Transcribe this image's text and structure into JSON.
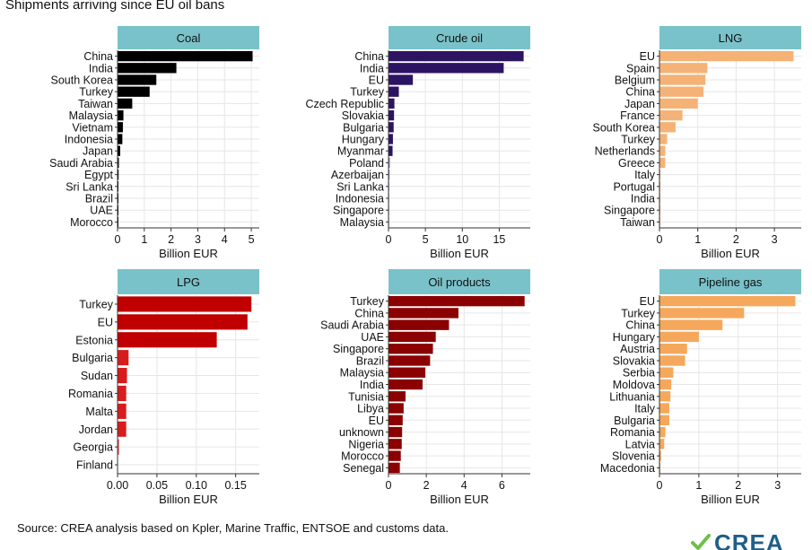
{
  "header": {
    "title": "Shipments arriving since EU oil bans"
  },
  "footer": {
    "source": "Source: CREA analysis based on Kpler, Marine Traffic, ENTSOE and customs data."
  },
  "logo": {
    "text": "CREA",
    "mark_color": "#6cc04a",
    "text_color": "#1d5f8a"
  },
  "style": {
    "strip_fill": "#7ac2c9",
    "grid_color": "#e6e6e6"
  },
  "chart_data": [
    {
      "type": "bar",
      "orientation": "horizontal",
      "title": "Coal",
      "xlabel": "Billion EUR",
      "categories": [
        "China",
        "India",
        "South Korea",
        "Turkey",
        "Taiwan",
        "Malaysia",
        "Vietnam",
        "Indonesia",
        "Japan",
        "Saudi Arabia",
        "Egypt",
        "Sri Lanka",
        "Brazil",
        "UAE",
        "Morocco"
      ],
      "values": [
        5.05,
        2.2,
        1.45,
        1.2,
        0.55,
        0.22,
        0.2,
        0.18,
        0.1,
        0.05,
        0.04,
        0.03,
        0.03,
        0.02,
        0.01
      ],
      "colors": [
        "#000000",
        "#000000",
        "#000000",
        "#000000",
        "#000000",
        "#000000",
        "#000000",
        "#000000",
        "#000000",
        "#000000",
        "#000000",
        "#000000",
        "#000000",
        "#000000",
        "#000000"
      ],
      "ticks": [
        0,
        1,
        2,
        3,
        4,
        5
      ],
      "tick_labels": [
        "0",
        "1",
        "2",
        "3",
        "4",
        "5"
      ],
      "xlim": [
        0,
        5.3
      ]
    },
    {
      "type": "bar",
      "orientation": "horizontal",
      "title": "Crude oil",
      "xlabel": "Billion EUR",
      "categories": [
        "China",
        "India",
        "EU",
        "Turkey",
        "Czech Republic",
        "Slovakia",
        "Bulgaria",
        "Hungary",
        "Myanmar",
        "Poland",
        "Azerbaijan",
        "Sri Lanka",
        "Indonesia",
        "Singapore",
        "Malaysia"
      ],
      "values": [
        18.3,
        15.6,
        3.3,
        1.4,
        0.8,
        0.75,
        0.7,
        0.6,
        0.55,
        0.2,
        0.15,
        0.05,
        0.03,
        0.02,
        0.01
      ],
      "colors": [
        "#2d1463",
        "#2d1463",
        "#2d1463",
        "#2d1463",
        "#2d1463",
        "#2d1463",
        "#2d1463",
        "#2d1463",
        "#2d1463",
        "#9a8ec8",
        "#9a8ec8",
        "#b9b2da",
        "#c9c3e3",
        "#d2cde8",
        "#d6d2ea"
      ],
      "ticks": [
        0,
        5,
        10,
        15
      ],
      "tick_labels": [
        "0",
        "5",
        "10",
        "15"
      ],
      "xlim": [
        0,
        19.2
      ]
    },
    {
      "type": "bar",
      "orientation": "horizontal",
      "title": "LNG",
      "xlabel": "Billion EUR",
      "categories": [
        "EU",
        "Spain",
        "Belgium",
        "China",
        "Japan",
        "France",
        "South Korea",
        "Turkey",
        "Netherlands",
        "Greece",
        "Italy",
        "Portugal",
        "India",
        "Singapore",
        "Taiwan"
      ],
      "values": [
        3.5,
        1.25,
        1.2,
        1.15,
        1.0,
        0.6,
        0.42,
        0.2,
        0.15,
        0.15,
        0.02,
        0.01,
        0.01,
        0.01,
        0.01
      ],
      "colors": [
        "#f5b277",
        "#f5b277",
        "#f5b277",
        "#f5b277",
        "#f5b277",
        "#f5b277",
        "#f5b277",
        "#f5b277",
        "#f5b277",
        "#f5b277",
        "#f5b277",
        "#f5b277",
        "#f5b277",
        "#f5b277",
        "#f5b277"
      ],
      "ticks": [
        0,
        1,
        2,
        3
      ],
      "tick_labels": [
        "0",
        "1",
        "2",
        "3"
      ],
      "xlim": [
        0,
        3.7
      ]
    },
    {
      "type": "bar",
      "orientation": "horizontal",
      "title": "LPG",
      "xlabel": "Billion EUR",
      "categories": [
        "Turkey",
        "EU",
        "Estonia",
        "Bulgaria",
        "Sudan",
        "Romania",
        "Malta",
        "Jordan",
        "Georgia",
        "Finland"
      ],
      "values": [
        0.17,
        0.165,
        0.126,
        0.014,
        0.012,
        0.011,
        0.011,
        0.011,
        0.002,
        0.0
      ],
      "colors": [
        "#c00000",
        "#c00000",
        "#c00000",
        "#d81c1c",
        "#d81c1c",
        "#d81c1c",
        "#d81c1c",
        "#d81c1c",
        "#e85a5a",
        "#f0a0a0"
      ],
      "ticks": [
        0,
        0.05,
        0.1,
        0.15
      ],
      "tick_labels": [
        "0.00",
        "0.05",
        "0.10",
        "0.15"
      ],
      "xlim": [
        0,
        0.18
      ]
    },
    {
      "type": "bar",
      "orientation": "horizontal",
      "title": "Oil products",
      "xlabel": "Billion EUR",
      "categories": [
        "Turkey",
        "China",
        "Saudi Arabia",
        "UAE",
        "Singapore",
        "Brazil",
        "Malaysia",
        "India",
        "Tunisia",
        "Libya",
        "EU",
        "unknown",
        "Nigeria",
        "Morocco",
        "Senegal"
      ],
      "values": [
        7.2,
        3.7,
        3.2,
        2.5,
        2.35,
        2.2,
        1.95,
        1.8,
        0.9,
        0.8,
        0.75,
        0.72,
        0.7,
        0.65,
        0.6
      ],
      "colors": [
        "#8b0000",
        "#8b0000",
        "#8b0000",
        "#8b0000",
        "#8b0000",
        "#8b0000",
        "#8b0000",
        "#8b0000",
        "#8b0000",
        "#8b0000",
        "#8b0000",
        "#8b0000",
        "#8b0000",
        "#8b0000",
        "#8b0000"
      ],
      "ticks": [
        0,
        2,
        4,
        6
      ],
      "tick_labels": [
        "0",
        "2",
        "4",
        "6"
      ],
      "xlim": [
        0,
        7.5
      ]
    },
    {
      "type": "bar",
      "orientation": "horizontal",
      "title": "Pipeline gas",
      "xlabel": "Billion EUR",
      "categories": [
        "EU",
        "Turkey",
        "China",
        "Hungary",
        "Austria",
        "Slovakia",
        "Serbia",
        "Moldova",
        "Lithuania",
        "Italy",
        "Bulgaria",
        "Romania",
        "Latvia",
        "Slovenia",
        "Macedonia"
      ],
      "values": [
        3.45,
        2.15,
        1.6,
        1.0,
        0.7,
        0.65,
        0.35,
        0.3,
        0.28,
        0.25,
        0.25,
        0.15,
        0.12,
        0.04,
        0.02
      ],
      "colors": [
        "#f5a85b",
        "#f5a85b",
        "#f5a85b",
        "#f5a85b",
        "#f5a85b",
        "#f5a85b",
        "#f5a85b",
        "#f5a85b",
        "#f5a85b",
        "#f5a85b",
        "#f5a85b",
        "#f5a85b",
        "#f5a85b",
        "#f5a85b",
        "#f5a85b"
      ],
      "ticks": [
        0,
        1,
        2,
        3
      ],
      "tick_labels": [
        "0",
        "1",
        "2",
        "3"
      ],
      "xlim": [
        0,
        3.6
      ]
    }
  ]
}
